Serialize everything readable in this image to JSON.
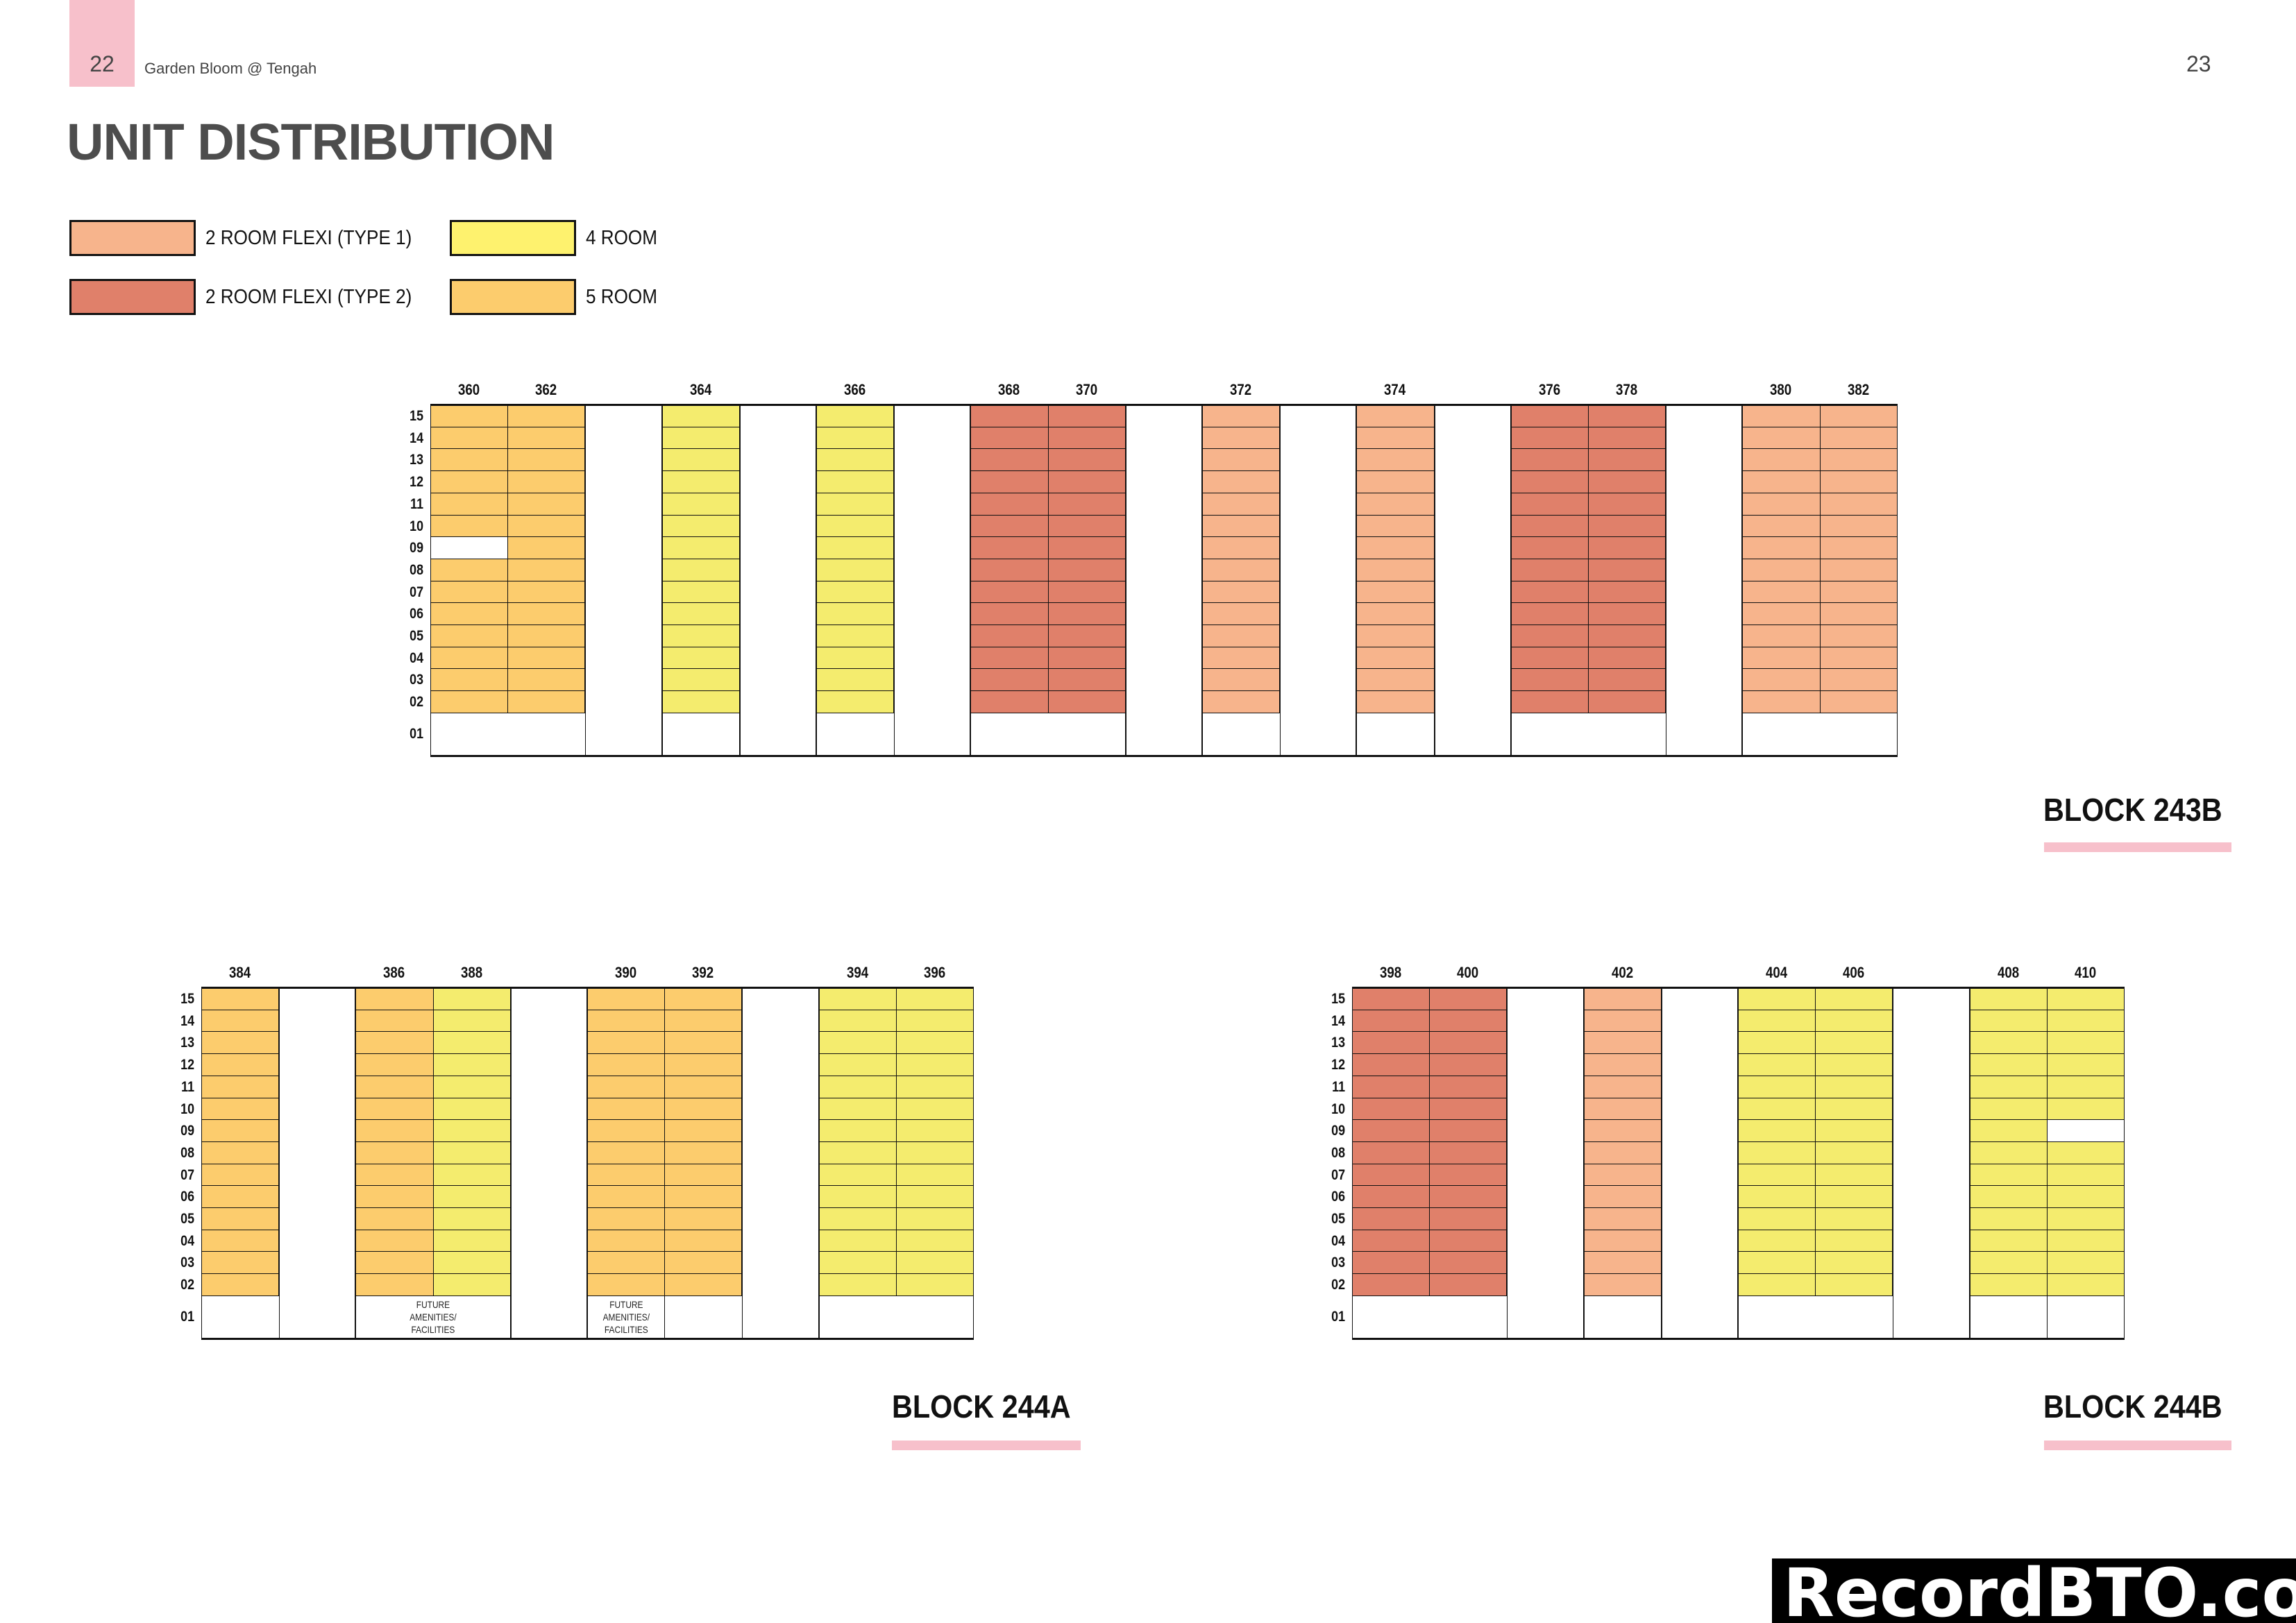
{
  "header": {
    "page_left": "22",
    "doc_title": "Garden Bloom @ Tengah",
    "page_right": "23"
  },
  "title": "UNIT DISTRIBUTION",
  "legend": [
    {
      "key": "2RF1",
      "label": "2  ROOM FLEXI (TYPE 1)",
      "color": "#f7b48c"
    },
    {
      "key": "2RF2",
      "label": "2  ROOM FLEXI (TYPE 2)",
      "color": "#e0806a"
    },
    {
      "key": "4R",
      "label": "4 ROOM",
      "color": "#fef26e"
    },
    {
      "key": "5R",
      "label": "5 ROOM",
      "color": "#fccc6d"
    }
  ],
  "cell_colors": {
    "2RF1": "#f7b48c",
    "2RF2": "#e0806a",
    "4R": "#f4ec6e",
    "5R": "#fccc6d",
    "blank": "#ffffff"
  },
  "floors": [
    "15",
    "14",
    "13",
    "12",
    "11",
    "10",
    "09",
    "08",
    "07",
    "06",
    "05",
    "04",
    "03",
    "02"
  ],
  "ground_floor": "01",
  "blocks": [
    {
      "name": "BLOCK 243B",
      "columns": [
        {
          "unit": "360",
          "type": "5R"
        },
        {
          "unit": "362",
          "type": "5R"
        },
        {
          "gap": true
        },
        {
          "unit": "364",
          "type": "4R"
        },
        {
          "gap": true
        },
        {
          "unit": "366",
          "type": "4R"
        },
        {
          "gap": true
        },
        {
          "unit": "368",
          "type": "2RF2"
        },
        {
          "unit": "370",
          "type": "2RF2"
        },
        {
          "gap": true
        },
        {
          "unit": "372",
          "type": "2RF1"
        },
        {
          "gap": true
        },
        {
          "unit": "374",
          "type": "2RF1"
        },
        {
          "gap": true
        },
        {
          "unit": "376",
          "type": "2RF2"
        },
        {
          "unit": "378",
          "type": "2RF2"
        },
        {
          "gap": true
        },
        {
          "unit": "380",
          "type": "2RF1"
        },
        {
          "unit": "382",
          "type": "2RF1"
        }
      ],
      "blank_cells": [
        {
          "unit": "360",
          "floor": "09"
        }
      ],
      "ground_groups": [
        {
          "units": [
            "360",
            "362"
          ],
          "label": ""
        },
        {
          "units": [
            "364"
          ],
          "label": ""
        },
        {
          "units": [
            "366"
          ],
          "label": ""
        },
        {
          "units": [
            "368",
            "370"
          ],
          "label": ""
        },
        {
          "units": [
            "372"
          ],
          "label": ""
        },
        {
          "units": [
            "374"
          ],
          "label": ""
        },
        {
          "units": [
            "376",
            "378"
          ],
          "label": ""
        },
        {
          "units": [
            "380",
            "382"
          ],
          "label": ""
        }
      ]
    },
    {
      "name": "BLOCK 244A",
      "columns": [
        {
          "unit": "384",
          "type": "5R"
        },
        {
          "gap": true
        },
        {
          "unit": "386",
          "type": "5R"
        },
        {
          "unit": "388",
          "type": "4R"
        },
        {
          "gap": true
        },
        {
          "unit": "390",
          "type": "5R"
        },
        {
          "unit": "392",
          "type": "5R"
        },
        {
          "gap": true
        },
        {
          "unit": "394",
          "type": "4R"
        },
        {
          "unit": "396",
          "type": "4R"
        }
      ],
      "blank_cells": [],
      "ground_groups": [
        {
          "units": [
            "384"
          ],
          "label": ""
        },
        {
          "units": [
            "386",
            "388"
          ],
          "label": "FUTURE\nAMENITIES/\nFACILITIES"
        },
        {
          "units": [
            "390"
          ],
          "label": "FUTURE\nAMENITIES/\nFACILITIES"
        },
        {
          "units": [
            "392"
          ],
          "label": ""
        },
        {
          "units": [
            "394",
            "396"
          ],
          "label": ""
        }
      ]
    },
    {
      "name": "BLOCK 244B",
      "columns": [
        {
          "unit": "398",
          "type": "2RF2"
        },
        {
          "unit": "400",
          "type": "2RF2"
        },
        {
          "gap": true
        },
        {
          "unit": "402",
          "type": "2RF1"
        },
        {
          "gap": true
        },
        {
          "unit": "404",
          "type": "4R"
        },
        {
          "unit": "406",
          "type": "4R"
        },
        {
          "gap": true
        },
        {
          "unit": "408",
          "type": "4R"
        },
        {
          "unit": "410",
          "type": "4R"
        }
      ],
      "blank_cells": [
        {
          "unit": "410",
          "floor": "09"
        }
      ],
      "ground_groups": [
        {
          "units": [
            "398",
            "400"
          ],
          "label": ""
        },
        {
          "units": [
            "402"
          ],
          "label": ""
        },
        {
          "units": [
            "404",
            "406"
          ],
          "label": ""
        },
        {
          "units": [
            "408"
          ],
          "label": ""
        },
        {
          "units": [
            "410"
          ],
          "label": ""
        }
      ]
    }
  ],
  "watermark": "RecordBTO.com"
}
